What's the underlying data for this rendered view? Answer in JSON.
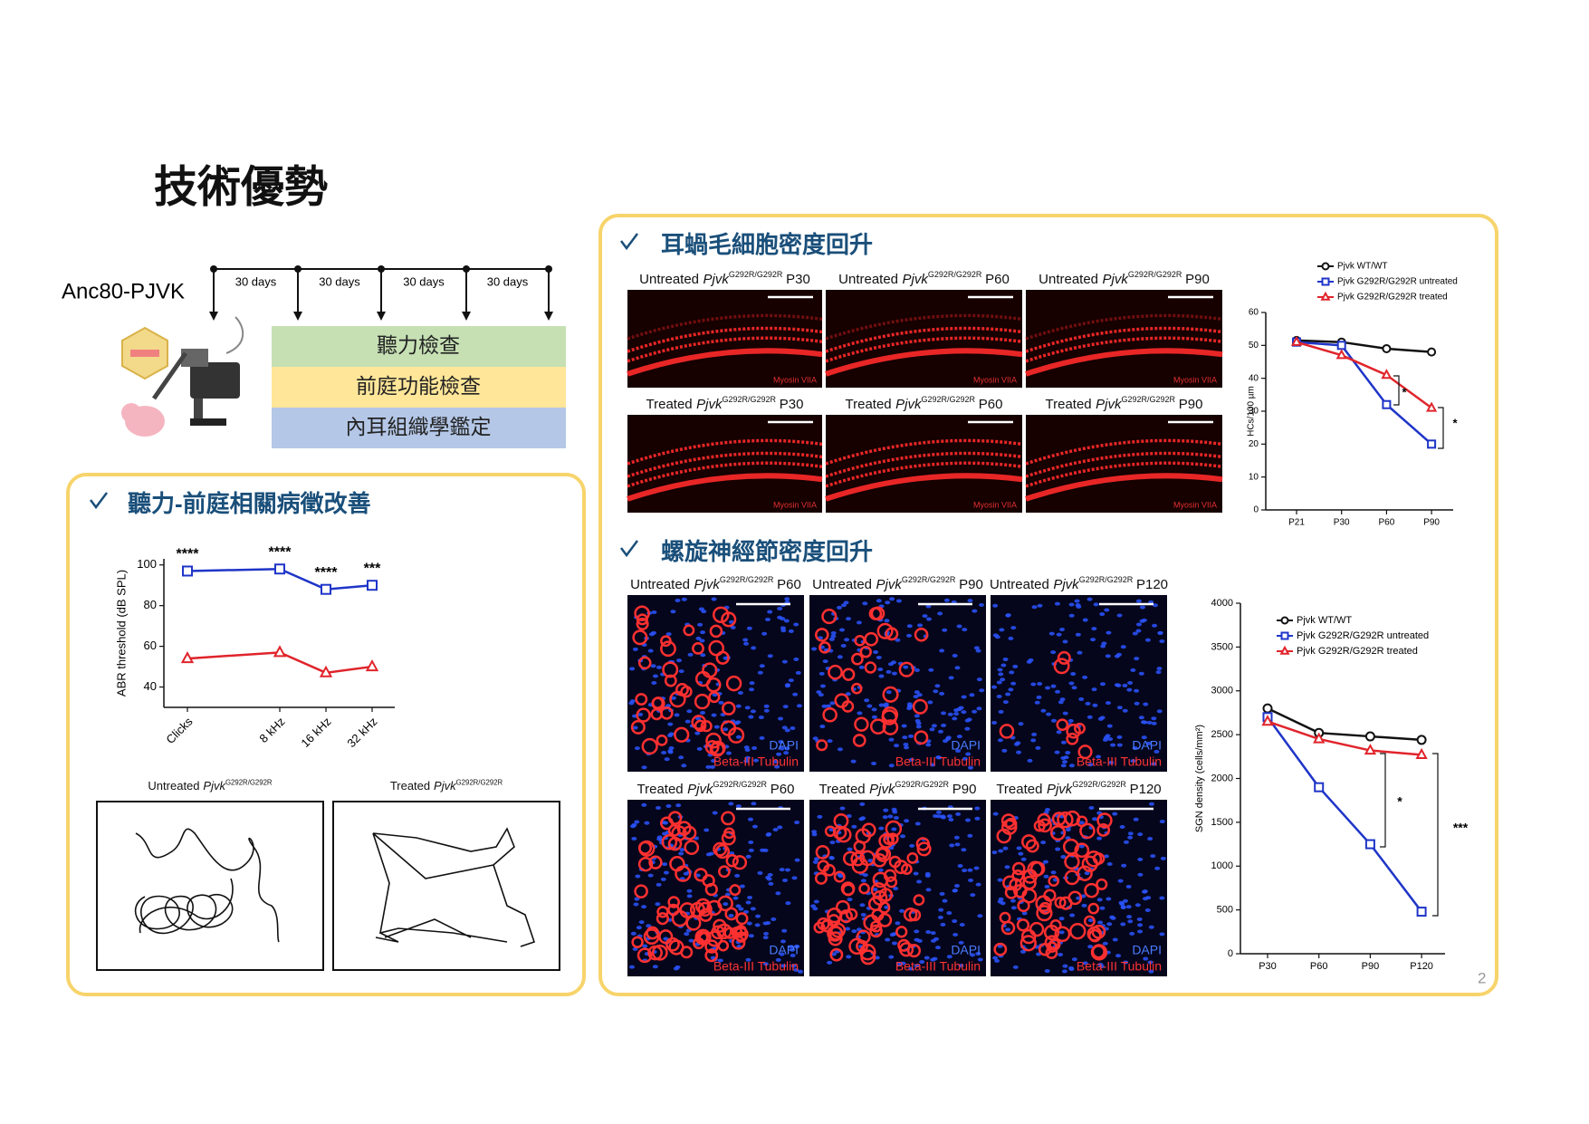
{
  "title": "技術優勢",
  "timeline": {
    "label": "Anc80-PJVK",
    "intervals": [
      "30 days",
      "30 days",
      "30 days",
      "30 days"
    ],
    "assays": [
      "聽力檢查",
      "前庭功能檢查",
      "內耳組織學鑑定"
    ]
  },
  "sections": {
    "hair_cells": {
      "heading": "耳蝸毛細胞密度回升",
      "stain": "Myosin VIIA",
      "images": [
        {
          "group": "Untreated",
          "gene": "Pjvk",
          "genotype": "G292R/G292R",
          "age": "P30"
        },
        {
          "group": "Untreated",
          "gene": "Pjvk",
          "genotype": "G292R/G292R",
          "age": "P60"
        },
        {
          "group": "Untreated",
          "gene": "Pjvk",
          "genotype": "G292R/G292R",
          "age": "P90"
        },
        {
          "group": "Treated",
          "gene": "Pjvk",
          "genotype": "G292R/G292R",
          "age": "P30"
        },
        {
          "group": "Treated",
          "gene": "Pjvk",
          "genotype": "G292R/G292R",
          "age": "P60"
        },
        {
          "group": "Treated",
          "gene": "Pjvk",
          "genotype": "G292R/G292R",
          "age": "P90"
        }
      ]
    },
    "sgn": {
      "heading": "螺旋神經節密度回升",
      "stains": [
        "DAPI",
        "Beta-III Tubulin"
      ],
      "images": [
        {
          "group": "Untreated",
          "gene": "Pjvk",
          "genotype": "G292R/G292R",
          "age": "P60"
        },
        {
          "group": "Untreated",
          "gene": "Pjvk",
          "genotype": "G292R/G292R",
          "age": "P90"
        },
        {
          "group": "Untreated",
          "gene": "Pjvk",
          "genotype": "G292R/G292R",
          "age": "P120"
        },
        {
          "group": "Treated",
          "gene": "Pjvk",
          "genotype": "G292R/G292R",
          "age": "P60"
        },
        {
          "group": "Treated",
          "gene": "Pjvk",
          "genotype": "G292R/G292R",
          "age": "P90"
        },
        {
          "group": "Treated",
          "gene": "Pjvk",
          "genotype": "G292R/G292R",
          "age": "P120"
        }
      ]
    },
    "hearing": {
      "heading": "聽力-前庭相關病徵改善",
      "tracks": [
        {
          "group": "Untreated",
          "gene": "Pjvk",
          "genotype": "G292R/G292R"
        },
        {
          "group": "Treated",
          "gene": "Pjvk",
          "genotype": "G292R/G292R"
        }
      ]
    }
  },
  "chart_data": [
    {
      "type": "line",
      "y_label": "ABR threshold (dB SPL)",
      "categories": [
        "Clicks",
        "8 kHz",
        "16 kHz",
        "32 kHz"
      ],
      "ylim": [
        30,
        103
      ],
      "yticks": [
        40,
        60,
        80,
        100
      ],
      "series": [
        {
          "color": "#1f35c8",
          "marker": "square",
          "values": [
            97,
            98,
            88,
            90
          ]
        },
        {
          "color": "#e0242b",
          "marker": "triangle",
          "values": [
            54,
            57,
            47,
            50
          ]
        }
      ],
      "annotations": [
        "****",
        "****",
        "****",
        "***"
      ]
    },
    {
      "type": "line",
      "y_label": "HCs/100 µm",
      "categories": [
        "P21",
        "P30",
        "P60",
        "P90"
      ],
      "ylim": [
        0,
        60
      ],
      "yticks": [
        0,
        10,
        20,
        30,
        40,
        50,
        60
      ],
      "series": [
        {
          "name": "Pjvk WT/WT",
          "color": "#111111",
          "marker": "circle",
          "values": [
            51.5,
            51,
            49,
            48
          ]
        },
        {
          "name": "Pjvk G292R/G292R untreated",
          "color": "#1f35c8",
          "marker": "square",
          "values": [
            51,
            50,
            32,
            20
          ]
        },
        {
          "name": "Pjvk G292R/G292R treated",
          "color": "#e0242b",
          "marker": "triangle",
          "values": [
            51,
            47,
            41,
            31
          ]
        }
      ],
      "annotations": [
        "*",
        "*"
      ]
    },
    {
      "type": "line",
      "y_label": "SGN density (cells/mm²)",
      "categories": [
        "P30",
        "P60",
        "P90",
        "P120"
      ],
      "ylim": [
        0,
        4000
      ],
      "yticks": [
        0,
        500,
        1000,
        1500,
        2000,
        2500,
        3000,
        3500,
        4000
      ],
      "series": [
        {
          "name": "Pjvk WT/WT",
          "color": "#111111",
          "marker": "circle",
          "values": [
            2800,
            2520,
            2480,
            2440
          ]
        },
        {
          "name": "Pjvk G292R/G292R untreated",
          "color": "#1f35c8",
          "marker": "square",
          "values": [
            2700,
            1900,
            1250,
            480
          ]
        },
        {
          "name": "Pjvk G292R/G292R treated",
          "color": "#e0242b",
          "marker": "triangle",
          "values": [
            2650,
            2450,
            2320,
            2270
          ]
        }
      ],
      "annotations": [
        "*",
        "***"
      ]
    }
  ],
  "page_number": "2"
}
